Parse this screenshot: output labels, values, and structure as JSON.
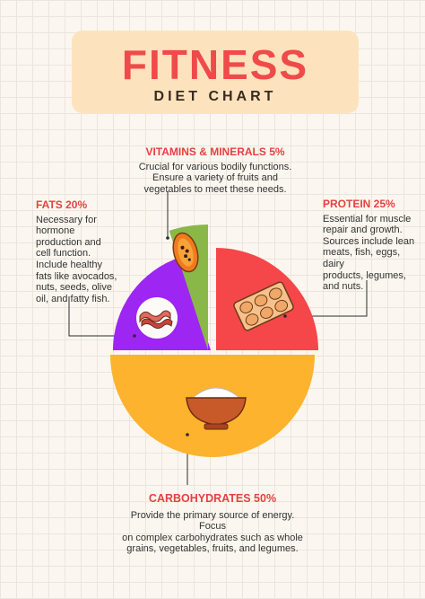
{
  "header": {
    "title": "FITNESS",
    "subtitle": "DIET CHART"
  },
  "chart_data": {
    "type": "pie",
    "title": "FITNESS DIET CHART",
    "slices": [
      {
        "name": "PROTEIN",
        "value": 25,
        "label": "PROTEIN 25%",
        "color": "#f5474a",
        "description": "Essential for muscle\nrepair and growth.\nSources include lean\nmeats, fish, eggs, dairy\nproducts, legumes,\nand nuts.",
        "icon": "eggs-carton-icon"
      },
      {
        "name": "CARBOHYDRATES",
        "value": 50,
        "label": "CARBOHYDRATES 50%",
        "color": "#fdb32d",
        "description": "Provide the primary source of energy. Focus\non complex carbohydrates such as whole\ngrains, vegetables, fruits, and legumes.",
        "icon": "rice-bowl-icon"
      },
      {
        "name": "FATS",
        "value": 20,
        "label": "FATS 20%",
        "color": "#9d26f2",
        "description": "Necessary for\nhormone\nproduction and\ncell function.\nInclude healthy\nfats like avocados,\nnuts, seeds, olive\noil, and fatty fish.",
        "icon": "bacon-icon"
      },
      {
        "name": "VITAMINS & MINERALS",
        "value": 5,
        "label": "VITAMINS & MINERALS 5%",
        "color": "#8ab848",
        "description": "Crucial for various bodily functions.\nEnsure a variety of fruits and\nvegetables to meet these needs.",
        "icon": "papaya-icon"
      }
    ]
  }
}
